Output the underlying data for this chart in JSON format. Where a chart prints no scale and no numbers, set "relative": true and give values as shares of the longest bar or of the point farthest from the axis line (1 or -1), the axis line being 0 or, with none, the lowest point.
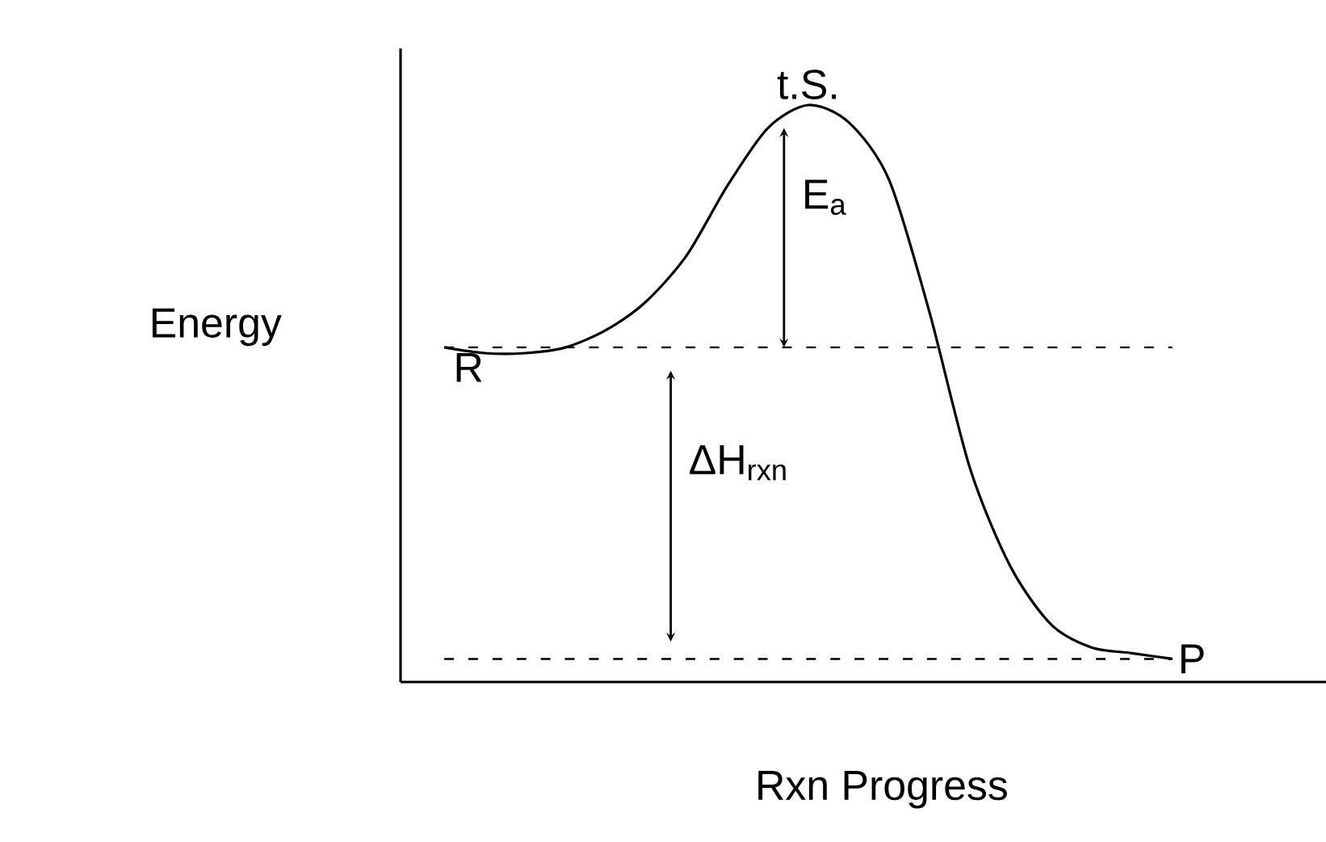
{
  "chart_data": {
    "type": "line",
    "relative": true,
    "xlabel": "Rxn Progress",
    "ylabel": "Energy",
    "categories": [
      null,
      null,
      null,
      null,
      null,
      null,
      null,
      null,
      null,
      null,
      null,
      null,
      null,
      null,
      null,
      null,
      null,
      null,
      null
    ],
    "values": [
      0.58,
      0.57,
      0.57,
      0.58,
      0.61,
      0.66,
      0.74,
      0.86,
      0.96,
      1.0,
      0.97,
      0.87,
      0.64,
      0.37,
      0.2,
      0.1,
      0.06,
      0.05,
      0.04
    ],
    "color": "#000000",
    "ref_lines": [
      {
        "axis": "y",
        "value": 0.58,
        "line_style": "dashed"
      },
      {
        "axis": "y",
        "value": 0.04,
        "line_style": "dashed"
      }
    ],
    "annotations": [
      "t.S.",
      "E$_{a}$",
      "R",
      "ΔH$_{rxn}$",
      "P"
    ]
  }
}
